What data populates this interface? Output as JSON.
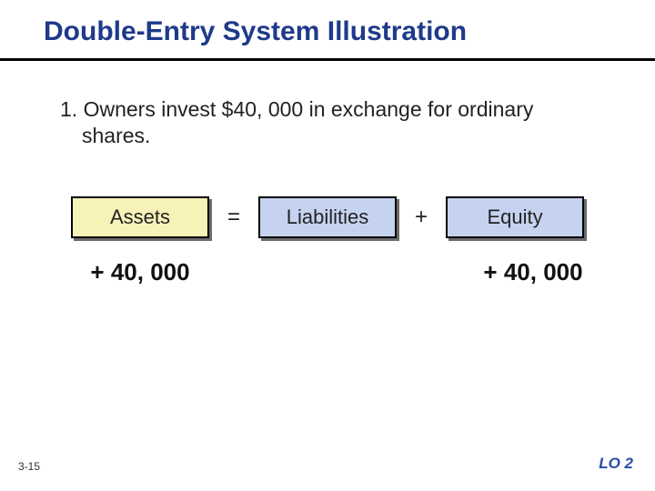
{
  "title": "Double-Entry System Illustration",
  "body_text": "1. Owners invest $40, 000 in exchange for ordinary shares.",
  "equation": {
    "assets": {
      "label": "Assets",
      "bg": "#f7f2b8"
    },
    "eq_sign": "=",
    "liabilities": {
      "label": "Liabilities",
      "bg": "#c5d3f0"
    },
    "plus_sign": "+",
    "equity": {
      "label": "Equity",
      "bg": "#c5d3f0"
    },
    "border_color": "#000000",
    "shadow_color": "#6b6b6b",
    "label_fontsize": 22
  },
  "values": {
    "assets": "+ 40, 000",
    "liabilities": "",
    "equity": "+ 40, 000",
    "fontsize": 26,
    "fontweight": 700
  },
  "slide_number": "3-15",
  "learning_objective": "LO 2",
  "colors": {
    "title_color": "#1f3a8a",
    "rule_color": "#000000",
    "lo_color": "#2a4aa8",
    "background": "#ffffff"
  }
}
